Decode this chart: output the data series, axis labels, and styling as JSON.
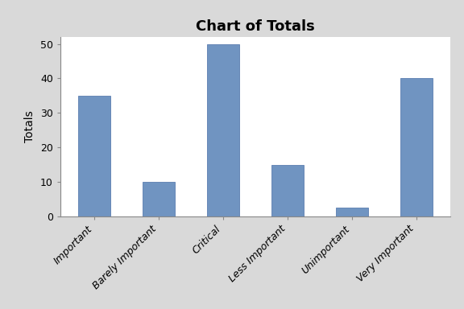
{
  "categories": [
    "Important",
    "Barely Important",
    "Critical",
    "Less Important",
    "Unimportant",
    "Very Important"
  ],
  "values": [
    35,
    10,
    50,
    15,
    2.5,
    40
  ],
  "bar_color": "#7094C1",
  "bar_edgecolor": "#5a7db0",
  "title": "Chart of Totals",
  "ylabel": "Totals",
  "ylim": [
    0,
    52
  ],
  "yticks": [
    0,
    10,
    20,
    30,
    40,
    50
  ],
  "background_color": "#d9d9d9",
  "plot_bg_color": "#ffffff",
  "title_fontsize": 13,
  "label_fontsize": 10,
  "tick_fontsize": 9,
  "bar_width": 0.5
}
